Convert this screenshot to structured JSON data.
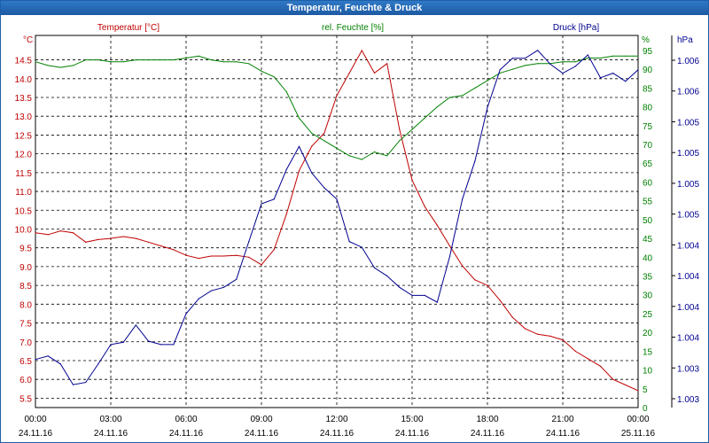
{
  "window": {
    "title": "Temperatur, Feuchte & Druck"
  },
  "colors": {
    "temperature": "#c00000",
    "humidity": "#008000",
    "pressure": "#000090",
    "grid": "#000000",
    "frame": "#1e5fa8"
  },
  "chart_data": {
    "type": "line",
    "title": "Temperatur, Feuchte & Druck",
    "grid": true,
    "x_ticks": [
      {
        "time": "00:00",
        "date": "24.11.16"
      },
      {
        "time": "03:00",
        "date": "24.11.16"
      },
      {
        "time": "06:00",
        "date": "24.11.16"
      },
      {
        "time": "09:00",
        "date": "24.11.16"
      },
      {
        "time": "12:00",
        "date": "24.11.16"
      },
      {
        "time": "15:00",
        "date": "24.11.16"
      },
      {
        "time": "18:00",
        "date": "24.11.16"
      },
      {
        "time": "21:00",
        "date": "24.11.16"
      },
      {
        "time": "00:00",
        "date": "25.11.16"
      }
    ],
    "xlim": [
      0,
      24
    ],
    "axes": {
      "left": {
        "label": "Temperatur [°C]",
        "unit": "°C",
        "ylim": [
          5.25,
          15.15
        ],
        "ticks": [
          "5.5",
          "6.0",
          "6.5",
          "7.0",
          "7.5",
          "8.0",
          "8.5",
          "9.0",
          "9.5",
          "10.0",
          "10.5",
          "11.0",
          "11.5",
          "12.0",
          "12.5",
          "13.0",
          "13.5",
          "14.0",
          "14.5"
        ]
      },
      "right1": {
        "label": "rel. Feuchte [%]",
        "unit": "%",
        "ylim": [
          0,
          99
        ],
        "ticks": [
          "0",
          "5",
          "10",
          "15",
          "20",
          "25",
          "30",
          "35",
          "40",
          "45",
          "50",
          "55",
          "60",
          "65",
          "70",
          "75",
          "80",
          "85",
          "90",
          "95"
        ]
      },
      "right2": {
        "label": "Druck [hPa]",
        "unit": "hPa",
        "ylim": [
          1002.9,
          1006.15
        ],
        "ticks": [
          "1.003",
          "1.003",
          "1.004",
          "1.004",
          "1.004",
          "1.004",
          "1.005",
          "1.005",
          "1.005",
          "1.005",
          "1.006",
          "1.006"
        ]
      }
    },
    "series": [
      {
        "name": "Temperatur [°C]",
        "axis": "left",
        "x": [
          0,
          0.5,
          1,
          1.5,
          2,
          2.5,
          3,
          3.5,
          4,
          4.5,
          5,
          5.5,
          6,
          6.5,
          7,
          7.5,
          8,
          8.5,
          9,
          9.5,
          10,
          10.5,
          11,
          11.5,
          12,
          12.5,
          13,
          13.5,
          14,
          14.5,
          15,
          15.5,
          16,
          16.5,
          17,
          17.5,
          18,
          18.5,
          19,
          19.5,
          20,
          20.5,
          21,
          21.5,
          22,
          22.5,
          23,
          23.5,
          24
        ],
        "y": [
          9.9,
          9.85,
          9.95,
          9.9,
          9.65,
          9.72,
          9.75,
          9.8,
          9.75,
          9.65,
          9.55,
          9.45,
          9.3,
          9.22,
          9.28,
          9.28,
          9.3,
          9.25,
          9.05,
          9.45,
          10.4,
          11.55,
          12.2,
          12.55,
          13.55,
          14.15,
          14.75,
          14.15,
          14.4,
          12.65,
          11.3,
          10.6,
          10.1,
          9.55,
          9.02,
          8.65,
          8.5,
          8.1,
          7.65,
          7.35,
          7.2,
          7.15,
          7.05,
          6.75,
          6.55,
          6.35,
          6.0,
          5.85,
          5.7
        ]
      },
      {
        "name": "rel. Feuchte [%]",
        "axis": "right1",
        "x": [
          0,
          0.5,
          1,
          1.5,
          2,
          2.5,
          3,
          3.5,
          4,
          4.5,
          5,
          5.5,
          6,
          6.5,
          7,
          7.5,
          8,
          8.5,
          9,
          9.5,
          10,
          10.5,
          11,
          11.5,
          12,
          12.5,
          13,
          13.5,
          14,
          14.5,
          15,
          15.5,
          16,
          16.5,
          17,
          17.5,
          18,
          18.5,
          19,
          19.5,
          20,
          20.5,
          21,
          21.5,
          22,
          22.5,
          23,
          23.5,
          24
        ],
        "y": [
          92,
          91,
          90.5,
          91,
          92.5,
          92.5,
          92,
          92,
          92.5,
          92.5,
          92.5,
          92.5,
          93,
          93.5,
          92.5,
          92,
          92,
          91.5,
          89.5,
          88,
          84,
          77,
          73,
          71,
          69,
          67,
          66,
          68,
          67,
          71,
          74,
          77,
          80,
          82.5,
          83,
          85,
          87,
          89,
          90,
          91,
          91.5,
          91.5,
          92,
          92,
          93,
          93,
          93.5,
          93.5,
          93.5
        ]
      },
      {
        "name": "Druck [hPa]",
        "axis": "right2",
        "x": [
          0,
          0.5,
          1,
          1.5,
          2,
          2.5,
          3,
          3.5,
          4,
          4.5,
          5,
          5.5,
          6,
          6.5,
          7,
          7.5,
          8,
          8.5,
          9,
          9.5,
          10,
          10.5,
          11,
          11.5,
          12,
          12.5,
          13,
          13.5,
          14,
          14.5,
          15,
          15.5,
          16,
          16.5,
          17,
          17.5,
          18,
          18.5,
          19,
          19.5,
          20,
          20.5,
          21,
          21.5,
          22,
          22.5,
          23,
          23.5,
          24
        ],
        "y": [
          1003.32,
          1003.35,
          1003.28,
          1003.1,
          1003.12,
          1003.28,
          1003.45,
          1003.47,
          1003.62,
          1003.48,
          1003.45,
          1003.45,
          1003.72,
          1003.85,
          1003.92,
          1003.95,
          1004.02,
          1004.35,
          1004.68,
          1004.72,
          1004.98,
          1005.18,
          1004.95,
          1004.82,
          1004.72,
          1004.35,
          1004.3,
          1004.12,
          1004.05,
          1003.95,
          1003.88,
          1003.88,
          1003.82,
          1004.22,
          1004.72,
          1005.05,
          1005.52,
          1005.85,
          1005.95,
          1005.95,
          1006.02,
          1005.9,
          1005.82,
          1005.88,
          1005.98,
          1005.78,
          1005.82,
          1005.75,
          1005.85
        ]
      }
    ]
  }
}
